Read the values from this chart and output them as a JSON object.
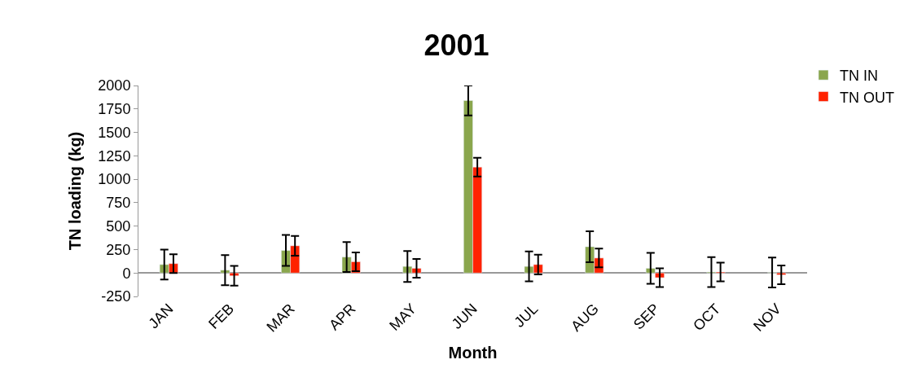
{
  "chart_data": {
    "type": "bar",
    "title": "2001",
    "xlabel": "Month",
    "ylabel": "TN loading (kg)",
    "categories": [
      "JAN",
      "FEB",
      "MAR",
      "APR",
      "MAY",
      "JUN",
      "JUL",
      "AUG",
      "SEP",
      "OCT",
      "NOV"
    ],
    "series": [
      {
        "name": "TN IN",
        "color": "#8aa64d",
        "values": [
          90,
          30,
          240,
          170,
          70,
          1840,
          70,
          280,
          50,
          10,
          5
        ],
        "errors": [
          160,
          160,
          165,
          160,
          165,
          160,
          160,
          165,
          165,
          160,
          160
        ]
      },
      {
        "name": "TN OUT",
        "color": "#ff2200",
        "values": [
          100,
          -30,
          290,
          120,
          50,
          1130,
          90,
          160,
          -50,
          10,
          -20
        ],
        "errors": [
          100,
          105,
          105,
          100,
          100,
          100,
          105,
          100,
          100,
          100,
          100
        ]
      }
    ],
    "ylim": [
      -250,
      2000
    ],
    "yticks": [
      -250,
      0,
      250,
      500,
      750,
      1000,
      1250,
      1500,
      1750,
      2000
    ],
    "legend": "top right"
  }
}
